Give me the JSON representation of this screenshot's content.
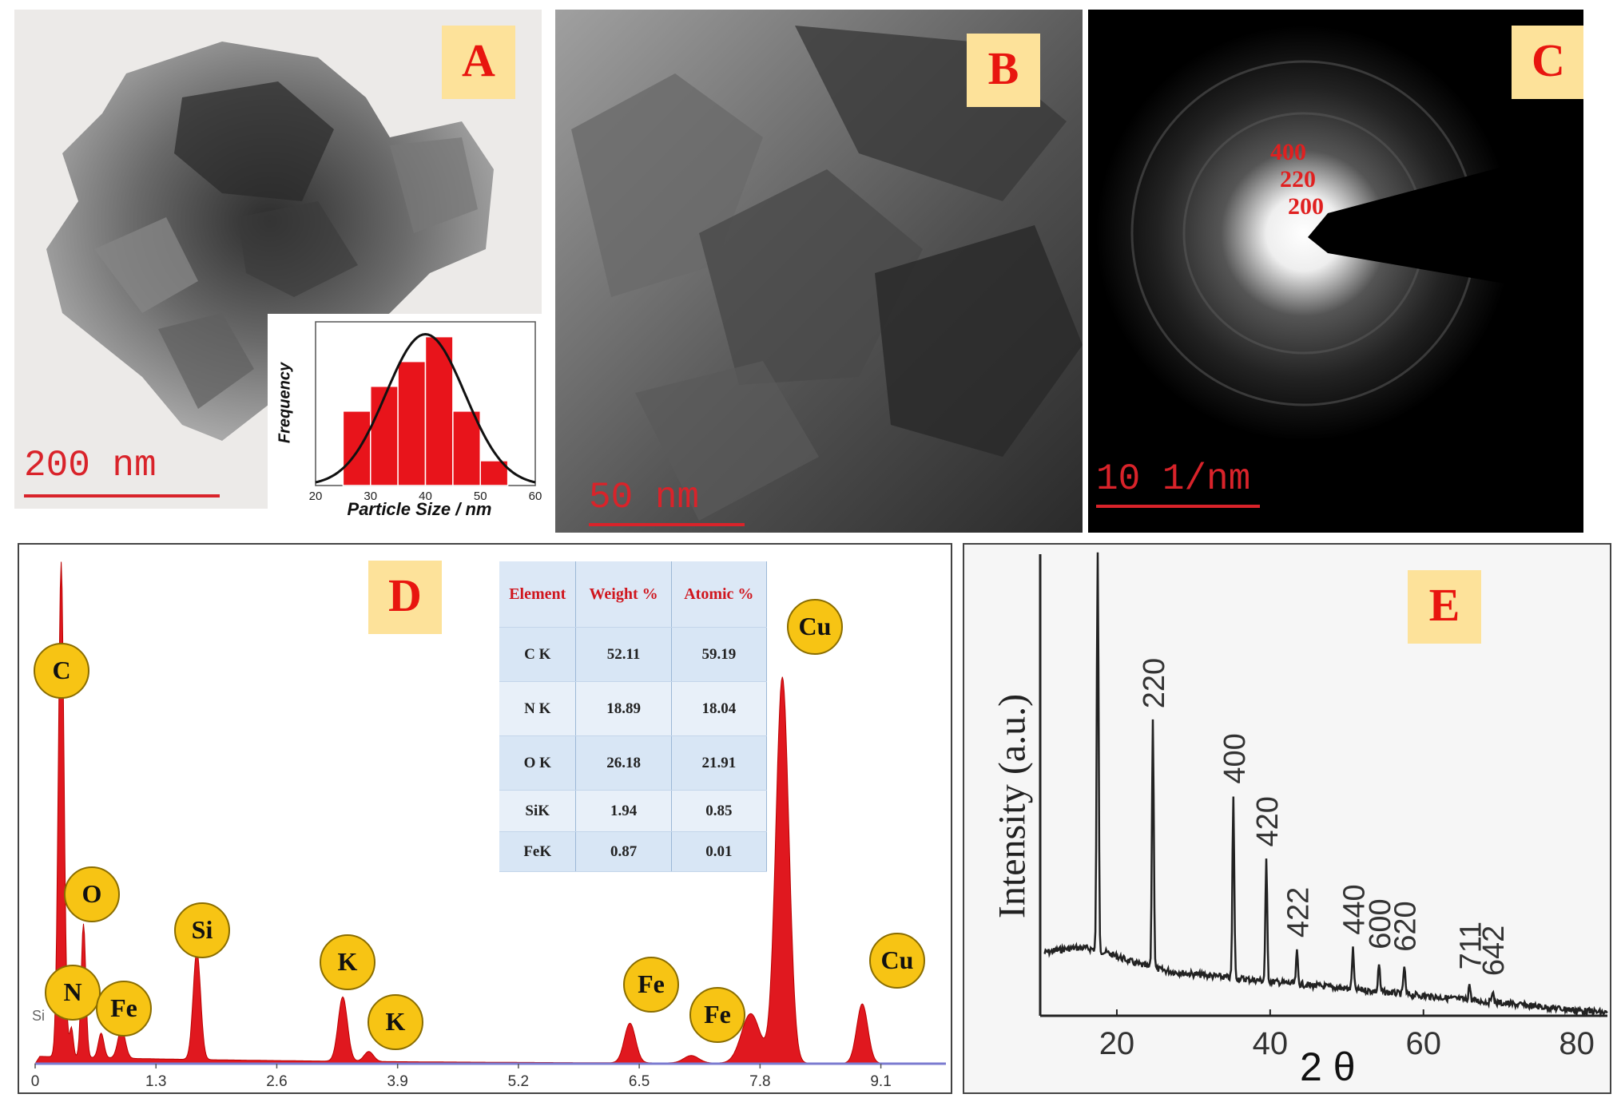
{
  "panels": {
    "A": {
      "label": "A",
      "scale_bar": "200 nm",
      "inset": {
        "ylabel": "Frequency",
        "xlabel": "Particle Size / nm",
        "x_ticks": [
          "20",
          "30",
          "40",
          "50",
          "60"
        ]
      }
    },
    "B": {
      "label": "B",
      "scale_bar": "50 nm"
    },
    "C": {
      "label": "C",
      "scale_bar": "10 1/nm",
      "rings": [
        "400",
        "220",
        "200"
      ]
    },
    "D": {
      "label": "D",
      "x_ticks": [
        "0",
        "1.3",
        "2.6",
        "3.9",
        "5.2",
        "6.5",
        "7.8",
        "9.1"
      ],
      "peaks": [
        "C",
        "O",
        "N",
        "Fe",
        "Si",
        "K",
        "K",
        "Fe",
        "Fe",
        "Cu",
        "Cu"
      ],
      "si_small": "Si",
      "table": {
        "headers": [
          "Element",
          "Weight  %",
          "Atomic %"
        ],
        "rows": [
          [
            "C K",
            "52.11",
            "59.19"
          ],
          [
            "N K",
            "18.89",
            "18.04"
          ],
          [
            "O K",
            "26.18",
            "21.91"
          ],
          [
            "SiK",
            "1.94",
            "0.85"
          ],
          [
            "FeK",
            "0.87",
            "0.01"
          ]
        ]
      }
    },
    "E": {
      "label": "E",
      "ylabel": "Intensity (a.u.)",
      "xlabel": "2 θ",
      "x_ticks": [
        "20",
        "40",
        "60",
        "80"
      ],
      "peak_labels": [
        "220",
        "400",
        "420",
        "422",
        "440",
        "600",
        "620",
        "711",
        "642"
      ]
    }
  },
  "colors": {
    "badge_bg": "#fde29a",
    "badge_text": "#e8150f",
    "scale": "#d9232a",
    "eds_fill": "#e0181f",
    "bubble": "#f7c414"
  },
  "chart_data": [
    {
      "type": "bar",
      "xlabel": "Particle Size / nm",
      "ylabel": "Frequency",
      "categories": [
        "25-30",
        "30-35",
        "35-40",
        "40-45",
        "45-50",
        "50-55"
      ],
      "values": [
        3,
        4,
        5,
        6,
        3,
        1
      ],
      "xlim": [
        20,
        60
      ]
    },
    {
      "type": "area",
      "xlabel": "",
      "ylabel": "",
      "x_ticks": [
        0,
        1.3,
        2.6,
        3.9,
        5.2,
        6.5,
        7.8,
        9.1
      ],
      "peaks": [
        {
          "element": "C",
          "energy": 0.28
        },
        {
          "element": "N",
          "energy": 0.39
        },
        {
          "element": "O",
          "energy": 0.52
        },
        {
          "element": "Fe",
          "energy": 0.71
        },
        {
          "element": "Si",
          "energy": 1.74
        },
        {
          "element": "K",
          "energy": 3.31
        },
        {
          "element": "K",
          "energy": 3.59
        },
        {
          "element": "Fe",
          "energy": 6.4
        },
        {
          "element": "Fe",
          "energy": 7.06
        },
        {
          "element": "Cu",
          "energy": 8.04
        },
        {
          "element": "Cu",
          "energy": 8.9
        }
      ]
    },
    {
      "type": "line",
      "xlabel": "2 θ",
      "ylabel": "Intensity (a.u.)",
      "xlim": [
        10,
        84
      ],
      "peaks": [
        {
          "x": 17.5,
          "y": 100
        },
        {
          "x": 24.7,
          "y": 62,
          "label": "220"
        },
        {
          "x": 35.2,
          "y": 45,
          "label": "400"
        },
        {
          "x": 39.5,
          "y": 30,
          "label": "420"
        },
        {
          "x": 43.5,
          "y": 8,
          "label": "422"
        },
        {
          "x": 50.8,
          "y": 10,
          "label": "440"
        },
        {
          "x": 54.2,
          "y": 7,
          "label": "600"
        },
        {
          "x": 57.5,
          "y": 7,
          "label": "620"
        },
        {
          "x": 66.0,
          "y": 4,
          "label": "711"
        },
        {
          "x": 69.0,
          "y": 3,
          "label": "642"
        }
      ]
    }
  ]
}
